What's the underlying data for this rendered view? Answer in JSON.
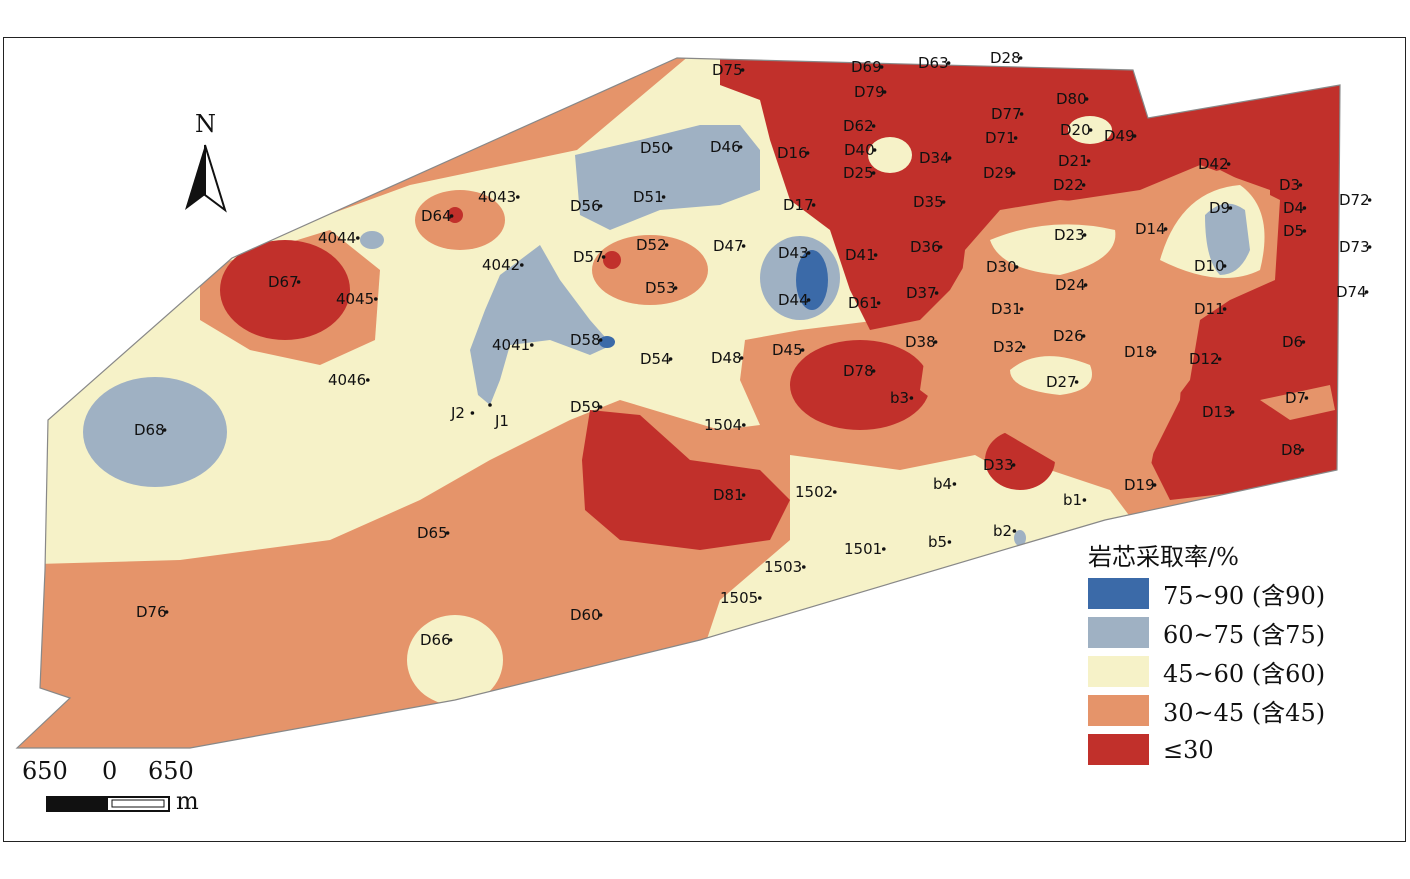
{
  "legend": {
    "title": "岩芯采取率/%",
    "items": [
      {
        "label": "75~90 (含90)",
        "color": "#3b6aa8"
      },
      {
        "label": "60~75 (含75)",
        "color": "#9fb1c3"
      },
      {
        "label": "45~60 (含60)",
        "color": "#f6f2c8"
      },
      {
        "label": "30~45 (含45)",
        "color": "#e5946a"
      },
      {
        "label": "≤30",
        "color": "#c1302b"
      }
    ]
  },
  "north_arrow": {
    "label": "N"
  },
  "scale_bar": {
    "left": "650",
    "center": "0",
    "right": "650",
    "unit": "m"
  },
  "wells": [
    "D75",
    "D69",
    "D63",
    "D28",
    "D79",
    "D80",
    "D77",
    "D71",
    "D62",
    "D40",
    "D20",
    "D49",
    "D50",
    "D46",
    "D16",
    "D34",
    "D29",
    "D21",
    "D25",
    "D22",
    "D42",
    "D3",
    "D4",
    "D72",
    "D5",
    "D73",
    "D74",
    "D9",
    "D10",
    "D14",
    "D23",
    "D17",
    "D35",
    "D36",
    "D43",
    "D41",
    "D30",
    "D24",
    "D44",
    "D61",
    "D37",
    "D31",
    "D11",
    "D6",
    "D26",
    "D38",
    "D32",
    "D18",
    "D12",
    "D45",
    "D78",
    "D27",
    "D7",
    "b3",
    "D13",
    "D8",
    "D33",
    "D19",
    "b4",
    "b1",
    "b2",
    "b5",
    "1501",
    "1502",
    "1503",
    "1505",
    "D81",
    "1504",
    "D59",
    "D54",
    "D48",
    "D58",
    "D53",
    "D57",
    "D52",
    "D47",
    "D51",
    "D56",
    "4043",
    "D64",
    "4044",
    "4042",
    "D67",
    "4045",
    "4041",
    "4046",
    "J2",
    "J1",
    "D68",
    "D65",
    "D76",
    "D66",
    "D60"
  ]
}
